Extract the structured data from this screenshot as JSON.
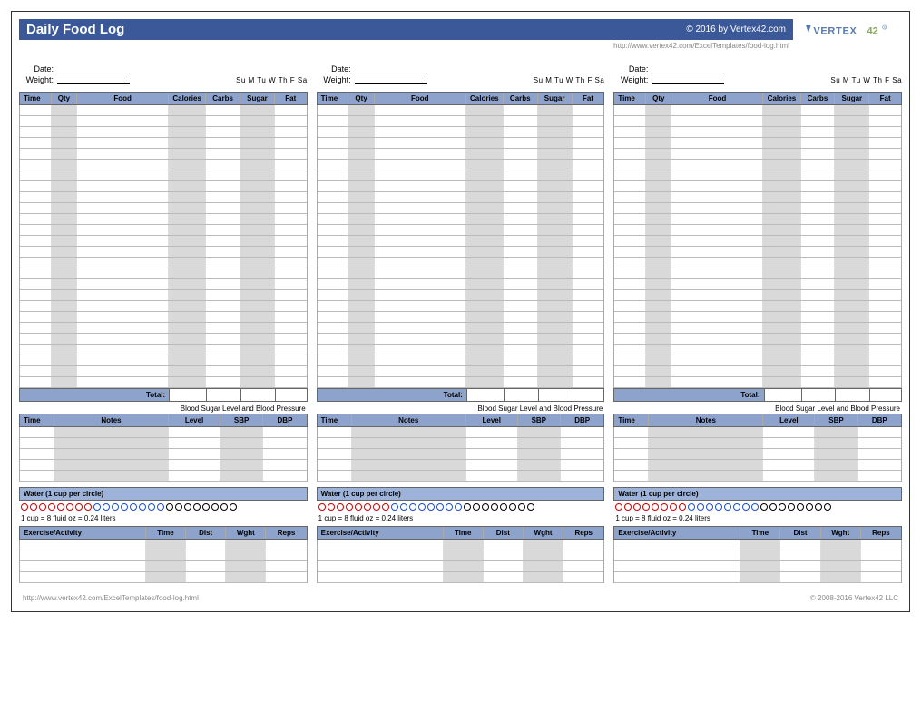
{
  "header": {
    "title": "Daily Food Log",
    "copyright": "© 2016 by Vertex42.com",
    "url": "http://www.vertex42.com/ExcelTemplates/food-log.html",
    "logo_color": "#5a7bb0",
    "logo_text": "VERTEX",
    "logo_suffix": "42"
  },
  "colors": {
    "header_band": "#8ea3cc",
    "water_band": "#9db3d9",
    "title_bar": "#3b5998",
    "shaded": "#d9d9d9",
    "red_circle": "#cc0000",
    "blue_circle": "#1a4fd6",
    "black_circle": "#000000"
  },
  "meta": {
    "date_label": "Date:",
    "weight_label": "Weight:",
    "days": "Su  M  Tu  W  Th  F  Sa"
  },
  "food_table": {
    "headers": [
      "Time",
      "Qty",
      "Food",
      "Calories",
      "Carbs",
      "Sugar",
      "Fat"
    ],
    "row_count": 26,
    "shaded_cols": [
      1,
      3,
      5
    ],
    "total_label": "Total:"
  },
  "bp_table": {
    "title": "Blood Sugar Level and Blood Pressure",
    "headers": [
      "Time",
      "Notes",
      "Level",
      "SBP",
      "DBP"
    ],
    "row_count": 5,
    "shaded_cols": [
      1,
      3
    ]
  },
  "water": {
    "title": "Water (1 cup per circle)",
    "note": "1 cup = 8 fluid oz = 0.24 liters",
    "circles": [
      "red",
      "red",
      "red",
      "red",
      "red",
      "red",
      "red",
      "red",
      "blue",
      "blue",
      "blue",
      "blue",
      "blue",
      "blue",
      "blue",
      "blue",
      "black",
      "black",
      "black",
      "black",
      "black",
      "black",
      "black",
      "black"
    ]
  },
  "exercise_table": {
    "headers": [
      "Exercise/Activity",
      "Time",
      "Dist",
      "Wght",
      "Reps"
    ],
    "row_count": 4,
    "shaded_cols": [
      1,
      3
    ]
  },
  "footer": {
    "url": "http://www.vertex42.com/ExcelTemplates/food-log.html",
    "copyright": "© 2008-2016 Vertex42 LLC"
  }
}
